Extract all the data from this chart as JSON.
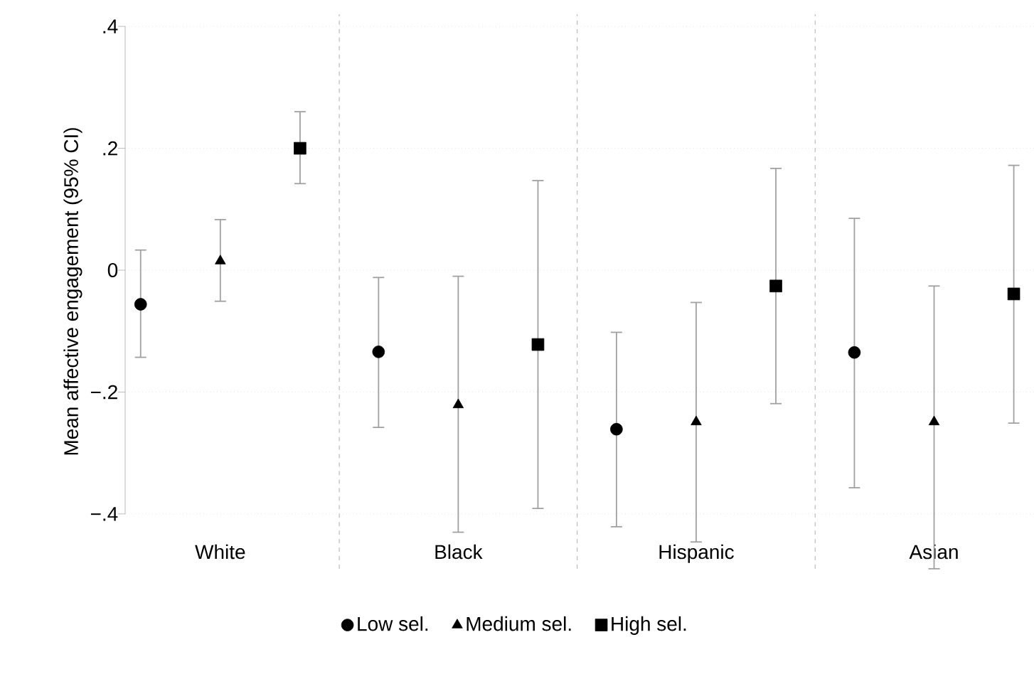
{
  "chart_data": {
    "type": "scatter",
    "ylabel": "Mean affective engagement (95% CI)",
    "categories": [
      "White",
      "Black",
      "Hispanic",
      "Asian"
    ],
    "series": [
      {
        "name": "Low sel.",
        "color": "#000000",
        "marker": "circle",
        "values": [
          -0.056,
          -0.134,
          -0.261,
          -0.135
        ],
        "errors": [
          [
            -0.143,
            0.033
          ],
          [
            -0.258,
            -0.012
          ],
          [
            -0.421,
            -0.102
          ],
          [
            -0.357,
            0.085
          ]
        ]
      },
      {
        "name": "Medium sel.",
        "color": "#000000",
        "marker": "triangle",
        "values": [
          0.015,
          -0.221,
          -0.249,
          -0.249
        ],
        "errors": [
          [
            -0.051,
            0.083
          ],
          [
            -0.43,
            -0.01
          ],
          [
            -0.446,
            -0.053
          ],
          [
            -0.49,
            -0.026
          ]
        ]
      },
      {
        "name": "High sel.",
        "color": "#000000",
        "marker": "square",
        "values": [
          0.2,
          -0.122,
          -0.026,
          -0.039
        ],
        "errors": [
          [
            0.142,
            0.26
          ],
          [
            -0.391,
            0.147
          ],
          [
            -0.219,
            0.167
          ],
          [
            -0.251,
            0.172
          ]
        ]
      }
    ],
    "ylim": [
      -0.49,
      0.42
    ],
    "yticks": [
      {
        "value": -0.4,
        "label": "−.4"
      },
      {
        "value": -0.2,
        "label": "−.2"
      },
      {
        "value": 0,
        "label": "0"
      },
      {
        "value": 0.2,
        "label": ".2"
      },
      {
        "value": 0.4,
        "label": ".4"
      }
    ],
    "grid": "y",
    "legend": "bottom"
  }
}
